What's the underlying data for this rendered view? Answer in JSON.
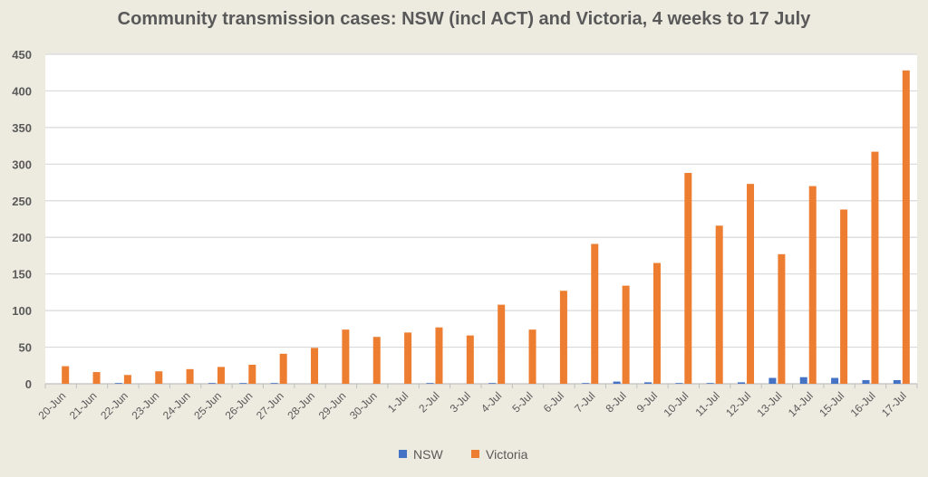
{
  "chart_data": {
    "type": "bar",
    "title": "Community transmission cases: NSW (incl ACT) and Victoria, 4 weeks to 17 July",
    "xlabel": "",
    "ylabel": "",
    "ylim": [
      0,
      450
    ],
    "yticks": [
      0,
      50,
      100,
      150,
      200,
      250,
      300,
      350,
      400,
      450
    ],
    "grid": true,
    "legend": "bottom",
    "categories": [
      "20-Jun",
      "21-Jun",
      "22-Jun",
      "23-Jun",
      "24-Jun",
      "25-Jun",
      "26-Jun",
      "27-Jun",
      "28-Jun",
      "29-Jun",
      "30-Jun",
      "1-Jul",
      "2-Jul",
      "3-Jul",
      "4-Jul",
      "5-Jul",
      "6-Jul",
      "7-Jul",
      "8-Jul",
      "9-Jul",
      "10-Jul",
      "11-Jul",
      "12-Jul",
      "13-Jul",
      "14-Jul",
      "15-Jul",
      "16-Jul",
      "17-Jul"
    ],
    "series": [
      {
        "name": "NSW",
        "color": "#4472c4",
        "values": [
          0,
          0,
          1,
          0,
          0,
          1,
          1,
          1,
          0,
          0,
          0,
          0,
          1,
          0,
          1,
          0,
          0,
          1,
          3,
          2,
          1,
          1,
          2,
          8,
          9,
          8,
          5,
          5
        ]
      },
      {
        "name": "Victoria",
        "color": "#ed7d31",
        "values": [
          24,
          16,
          12,
          17,
          20,
          23,
          26,
          41,
          49,
          74,
          64,
          70,
          77,
          66,
          108,
          74,
          127,
          191,
          134,
          165,
          288,
          216,
          273,
          177,
          270,
          238,
          317,
          428
        ]
      }
    ]
  }
}
